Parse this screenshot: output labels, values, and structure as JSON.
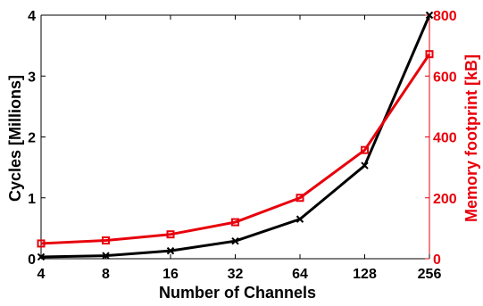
{
  "chart_data": {
    "type": "line",
    "categories": [
      "4",
      "8",
      "16",
      "32",
      "64",
      "128",
      "256"
    ],
    "xlabel": "Number of Channels",
    "ylabel_left": "Cycles [Millions]",
    "ylabel_right": "Memory footprint [kB]",
    "ylim_left": [
      0,
      4
    ],
    "ylim_right": [
      0,
      800
    ],
    "yticks_left": [
      "0",
      "1",
      "2",
      "3",
      "4"
    ],
    "yticks_right": [
      "0",
      "200",
      "400",
      "600",
      "800"
    ],
    "grid": false,
    "series": [
      {
        "axis": "left",
        "marker": "x",
        "color": "#000000",
        "values": [
          0.03,
          0.05,
          0.13,
          0.29,
          0.65,
          1.53,
          4.0
        ]
      },
      {
        "axis": "right",
        "marker": "square",
        "color": "#e8000b",
        "values": [
          50,
          60,
          80,
          120,
          200,
          357,
          672
        ]
      }
    ]
  }
}
